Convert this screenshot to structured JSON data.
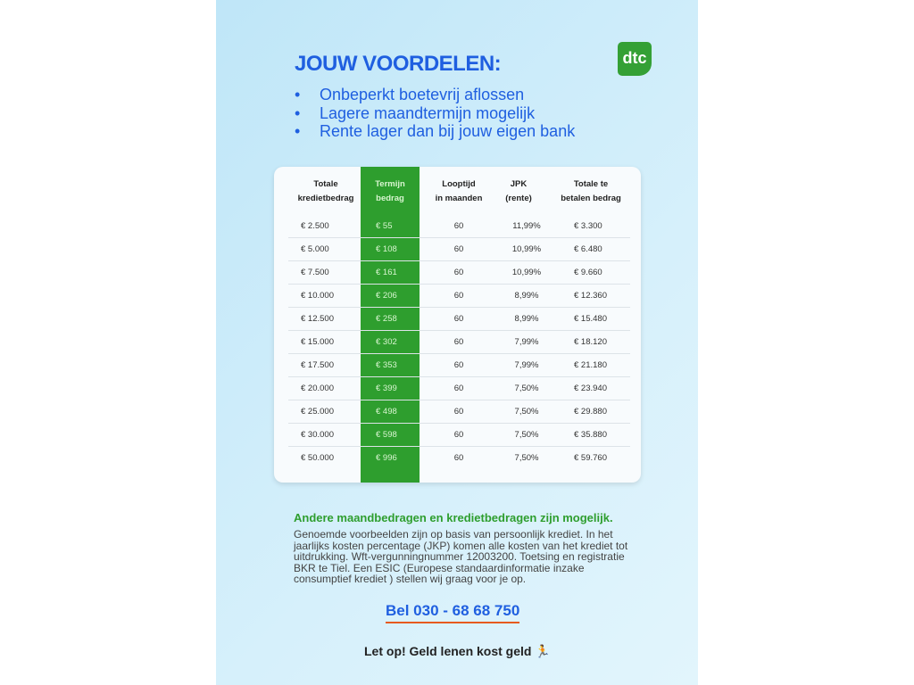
{
  "title": "JOUW VOORDELEN:",
  "logo": "dtc",
  "bullets": [
    "Onbeperkt boetevrij aflossen",
    "Lagere maandtermijn mogelijk",
    "Rente lager dan bij jouw eigen bank"
  ],
  "table": {
    "headers": [
      [
        "Totale",
        "kredietbedrag"
      ],
      [
        "Termijn",
        "bedrag"
      ],
      [
        "Looptijd",
        "in maanden"
      ],
      [
        "JPK",
        "(rente)"
      ],
      [
        "Totale te",
        "betalen bedrag"
      ]
    ],
    "rows": [
      [
        "€ 2.500",
        "€ 55",
        "60",
        "11,99%",
        "€ 3.300"
      ],
      [
        "€ 5.000",
        "€ 108",
        "60",
        "10,99%",
        "€ 6.480"
      ],
      [
        "€ 7.500",
        "€ 161",
        "60",
        "10,99%",
        "€ 9.660"
      ],
      [
        "€ 10.000",
        "€ 206",
        "60",
        "8,99%",
        "€ 12.360"
      ],
      [
        "€ 12.500",
        "€ 258",
        "60",
        "8,99%",
        "€ 15.480"
      ],
      [
        "€ 15.000",
        "€ 302",
        "60",
        "7,99%",
        "€ 18.120"
      ],
      [
        "€ 17.500",
        "€ 353",
        "60",
        "7,99%",
        "€ 21.180"
      ],
      [
        "€ 20.000",
        "€ 399",
        "60",
        "7,50%",
        "€ 23.940"
      ],
      [
        "€ 25.000",
        "€ 498",
        "60",
        "7,50%",
        "€ 29.880"
      ],
      [
        "€ 30.000",
        "€ 598",
        "60",
        "7,50%",
        "€ 35.880"
      ],
      [
        "€ 50.000",
        "€ 996",
        "60",
        "7,50%",
        "€ 59.760"
      ]
    ]
  },
  "note_heading": "Andere maandbedragen en kredietbedragen zijn mogelijk.",
  "note_text": "Genoemde voorbeelden zijn op basis van persoonlijk krediet. In het jaarlijks kosten percentage (JKP) komen alle kosten van het krediet tot uitdrukking. Wft-vergunningnummer 12003200. Toetsing en registratie BKR te Tiel. Een ESIC (Europese standaardinformatie inzake consumptief krediet ) stellen wij graag voor je op.",
  "phone": "Bel 030 - 68 68 750",
  "warning": "Let op! Geld lenen kost geld",
  "colors": {
    "blue": "#1f5fe0",
    "green": "#2e9e2e",
    "underline": "#e65a1e"
  }
}
